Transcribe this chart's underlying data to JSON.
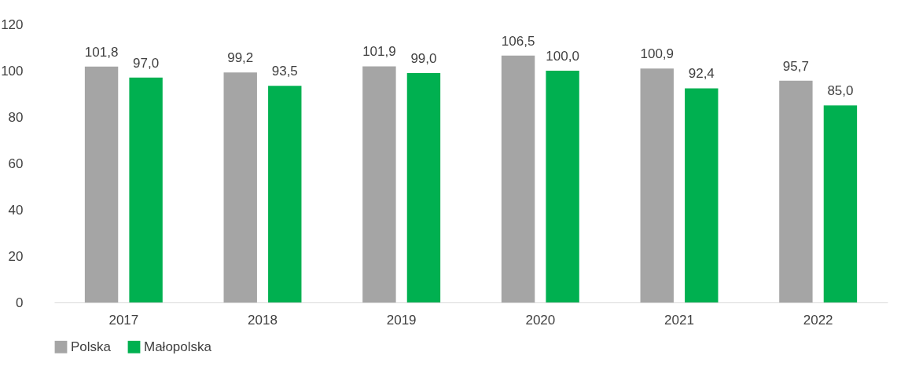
{
  "chart_data": {
    "type": "bar",
    "categories": [
      "2017",
      "2018",
      "2019",
      "2020",
      "2021",
      "2022"
    ],
    "series": [
      {
        "name": "Polska",
        "color": "#a5a5a5",
        "values": [
          101.8,
          99.2,
          101.9,
          106.5,
          100.9,
          95.7
        ],
        "value_labels": [
          "101,8",
          "99,2",
          "101,9",
          "106,5",
          "100,9",
          "95,7"
        ]
      },
      {
        "name": "Małopolska",
        "color": "#00b050",
        "values": [
          97.0,
          93.5,
          99.0,
          100.0,
          92.4,
          85.0
        ],
        "value_labels": [
          "97,0",
          "93,5",
          "99,0",
          "100,0",
          "92,4",
          "85,0"
        ]
      }
    ],
    "ylim": [
      0,
      120
    ],
    "yticks": [
      0,
      20,
      40,
      60,
      80,
      100,
      120
    ],
    "legend": "bottom"
  }
}
